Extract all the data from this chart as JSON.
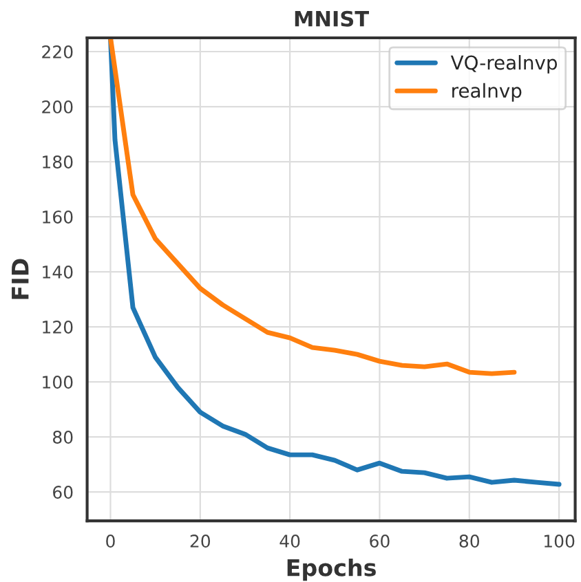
{
  "chart_data": {
    "type": "line",
    "title": "MNIST",
    "xlabel": "Epochs",
    "ylabel": "FID",
    "xlim": [
      -5.2,
      103.6
    ],
    "ylim": [
      49.5,
      225
    ],
    "xticks": [
      0,
      20,
      40,
      60,
      80,
      100
    ],
    "yticks": [
      60,
      80,
      100,
      120,
      140,
      160,
      180,
      200,
      220
    ],
    "grid": true,
    "legend": "top right",
    "line_style": "solid",
    "series": [
      {
        "name": "VQ-realnvp",
        "color": "#1f77b4",
        "x": [
          0,
          1,
          5,
          10,
          15,
          20,
          25,
          30,
          35,
          40,
          45,
          50,
          55,
          60,
          65,
          70,
          75,
          80,
          85,
          90,
          95,
          100
        ],
        "values": [
          225,
          188,
          127,
          109,
          98,
          89,
          84,
          81,
          76,
          73.5,
          73.5,
          71.5,
          68,
          70.5,
          67.5,
          67,
          65,
          65.5,
          63.5,
          64.3,
          63.5,
          62.8
        ]
      },
      {
        "name": "realnvp",
        "color": "#ff7f0e",
        "x": [
          0,
          5,
          10,
          15,
          20,
          25,
          30,
          35,
          40,
          45,
          50,
          55,
          60,
          65,
          70,
          75,
          80,
          85,
          90
        ],
        "values": [
          225,
          168,
          152,
          143,
          134,
          128,
          123,
          118,
          116,
          112.5,
          111.5,
          110,
          107.5,
          106,
          105.5,
          106.5,
          103.5,
          103,
          103.5
        ]
      }
    ]
  }
}
